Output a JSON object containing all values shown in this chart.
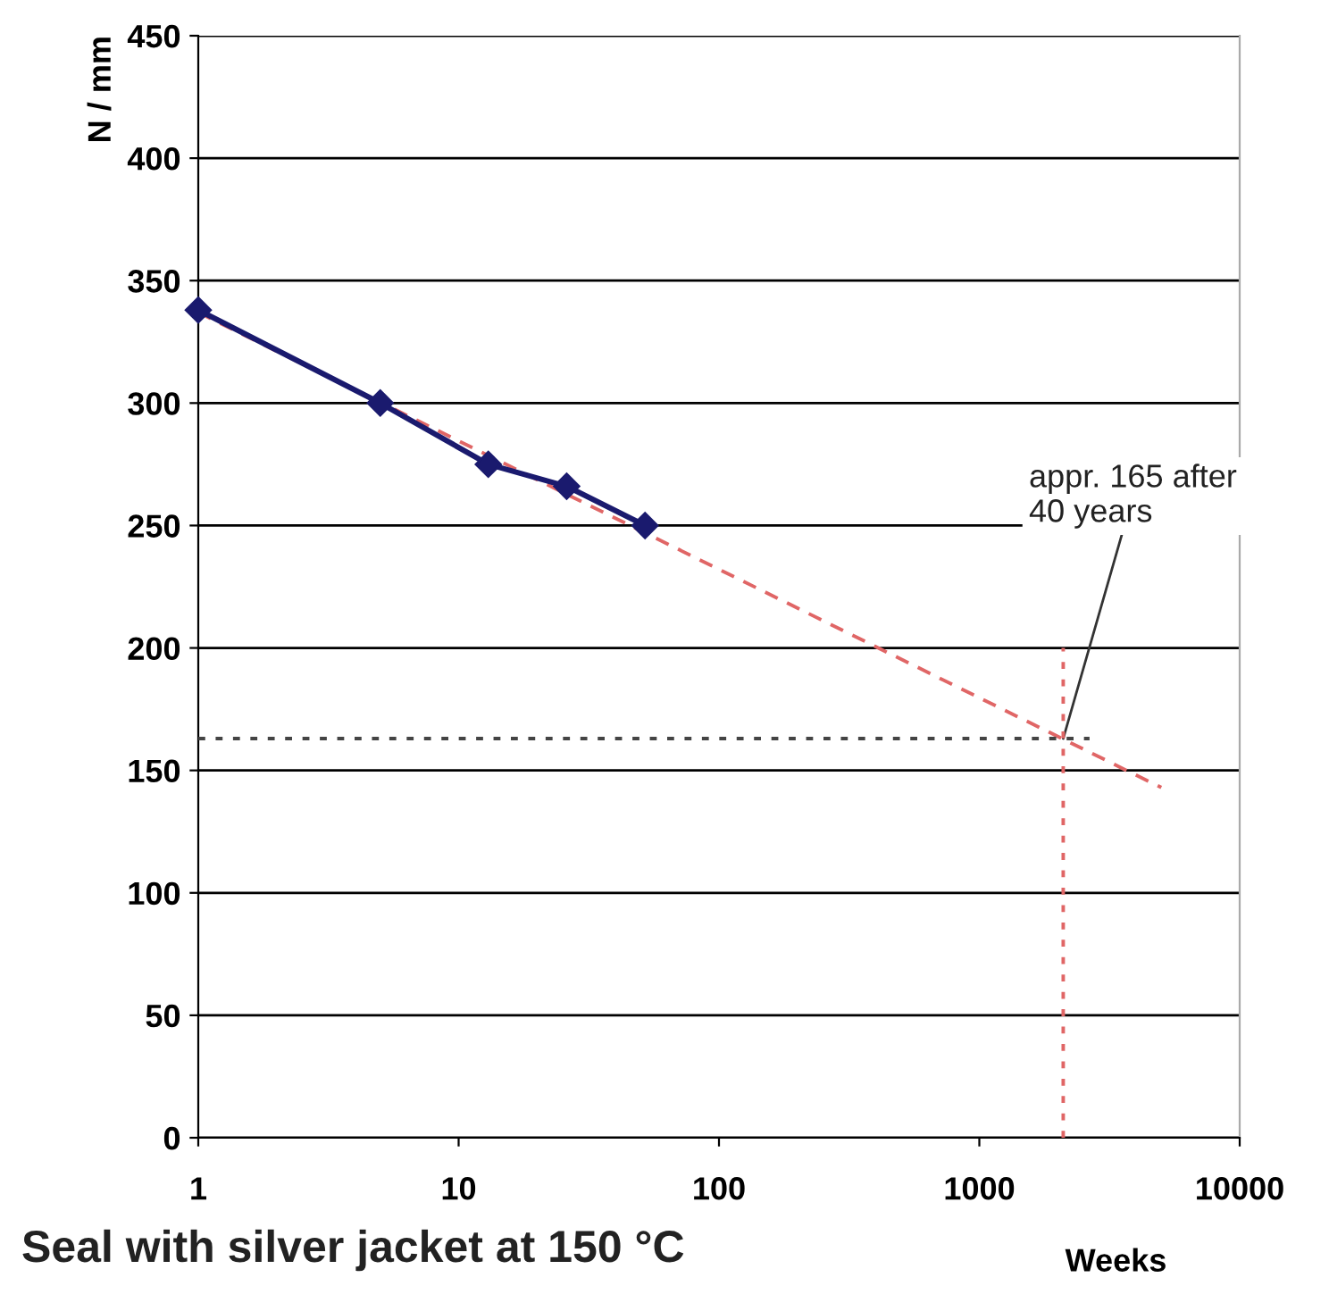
{
  "chart_data": {
    "type": "line",
    "xlabel": "Weeks",
    "ylabel": "N / mm",
    "log": "x",
    "grid": "y",
    "xlim": [
      1,
      10000
    ],
    "xticks": [
      1,
      10,
      100,
      1000,
      10000
    ],
    "ylim": [
      0,
      450
    ],
    "yticks": [
      0,
      50,
      100,
      150,
      200,
      250,
      300,
      350,
      400,
      450
    ],
    "series": [
      {
        "color": "#e06666",
        "line_style": "dashed",
        "marker": "none",
        "x": [
          1,
          5000
        ],
        "values": [
          337,
          143
        ]
      },
      {
        "color": "#e06666",
        "line_style": "dotted",
        "marker": "none",
        "x": [
          2100,
          2100
        ],
        "values": [
          0,
          200
        ]
      },
      {
        "color": "#444444",
        "line_style": "dotted",
        "marker": "none",
        "x": [
          1,
          2650
        ],
        "values": [
          163,
          163
        ]
      },
      {
        "color": "#1a1a6e",
        "line_style": "solid",
        "marker": "diamond",
        "x": [
          1,
          5,
          13,
          26,
          52
        ],
        "values": [
          338,
          300,
          275,
          266,
          250
        ]
      }
    ],
    "annotations": [
      {
        "text": "appr. 165 after\n40 years",
        "x": 2100,
        "y": 163
      },
      "Seal with silver jacket at 150 °C"
    ]
  }
}
